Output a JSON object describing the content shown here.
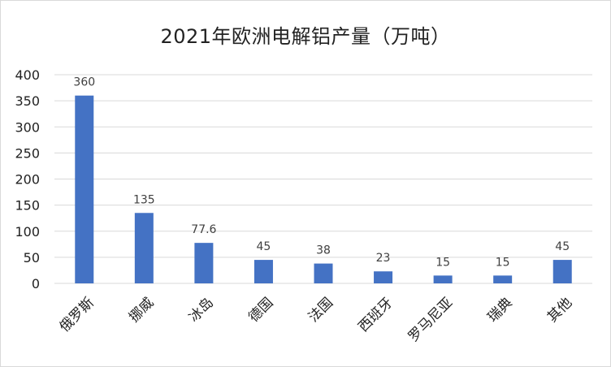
{
  "chart_data": {
    "type": "bar",
    "title": "2021年欧洲电解铝产量（万吨）",
    "categories": [
      "俄罗斯",
      "挪威",
      "冰岛",
      "德国",
      "法国",
      "西班牙",
      "罗马尼亚",
      "瑞典",
      "其他"
    ],
    "values": [
      360,
      135,
      77.6,
      45,
      38,
      23,
      15,
      15,
      45
    ],
    "data_labels": [
      "360",
      "135",
      "77.6",
      "45",
      "38",
      "23",
      "15",
      "15",
      "45"
    ],
    "ylim": [
      0,
      400
    ],
    "yticks": [
      0,
      50,
      100,
      150,
      200,
      250,
      300,
      350,
      400
    ],
    "grid": true,
    "legend": "none",
    "bar_color": "#4472C4",
    "grid_color": "#d9d9d9"
  }
}
